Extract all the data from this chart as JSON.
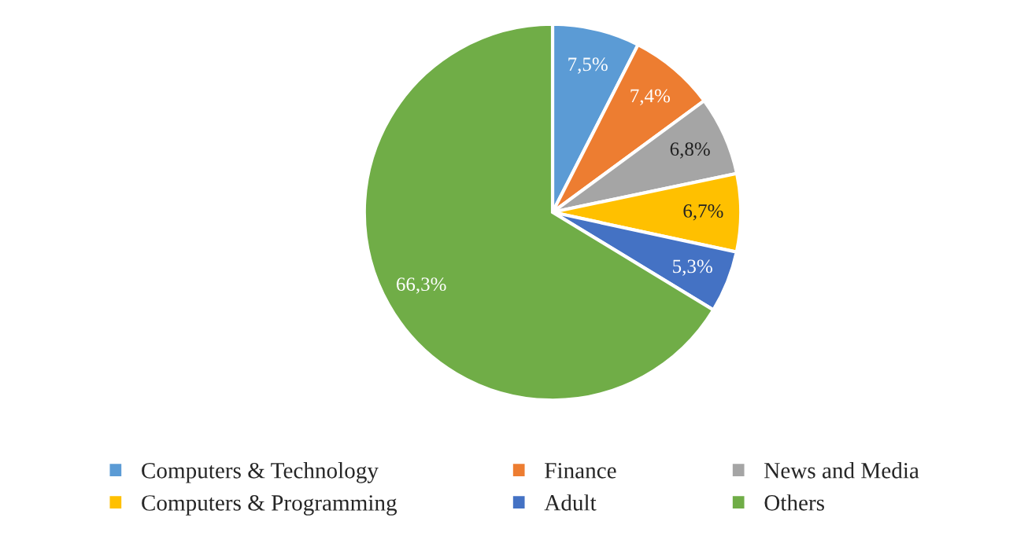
{
  "chart_data": {
    "type": "pie",
    "categories": [
      "Computers & Technology",
      "Finance",
      "News and Media",
      "Computers & Programming",
      "Adult",
      "Others"
    ],
    "values": [
      7.5,
      7.4,
      6.8,
      6.7,
      5.3,
      66.3
    ],
    "value_labels": [
      "7,5%",
      "7,4%",
      "6,8%",
      "6,7%",
      "5,3%",
      "66,3%"
    ],
    "colors": [
      "#5b9bd5",
      "#ed7d31",
      "#a5a5a5",
      "#ffc000",
      "#4472c4",
      "#70ad47"
    ],
    "legend": "bottom"
  }
}
